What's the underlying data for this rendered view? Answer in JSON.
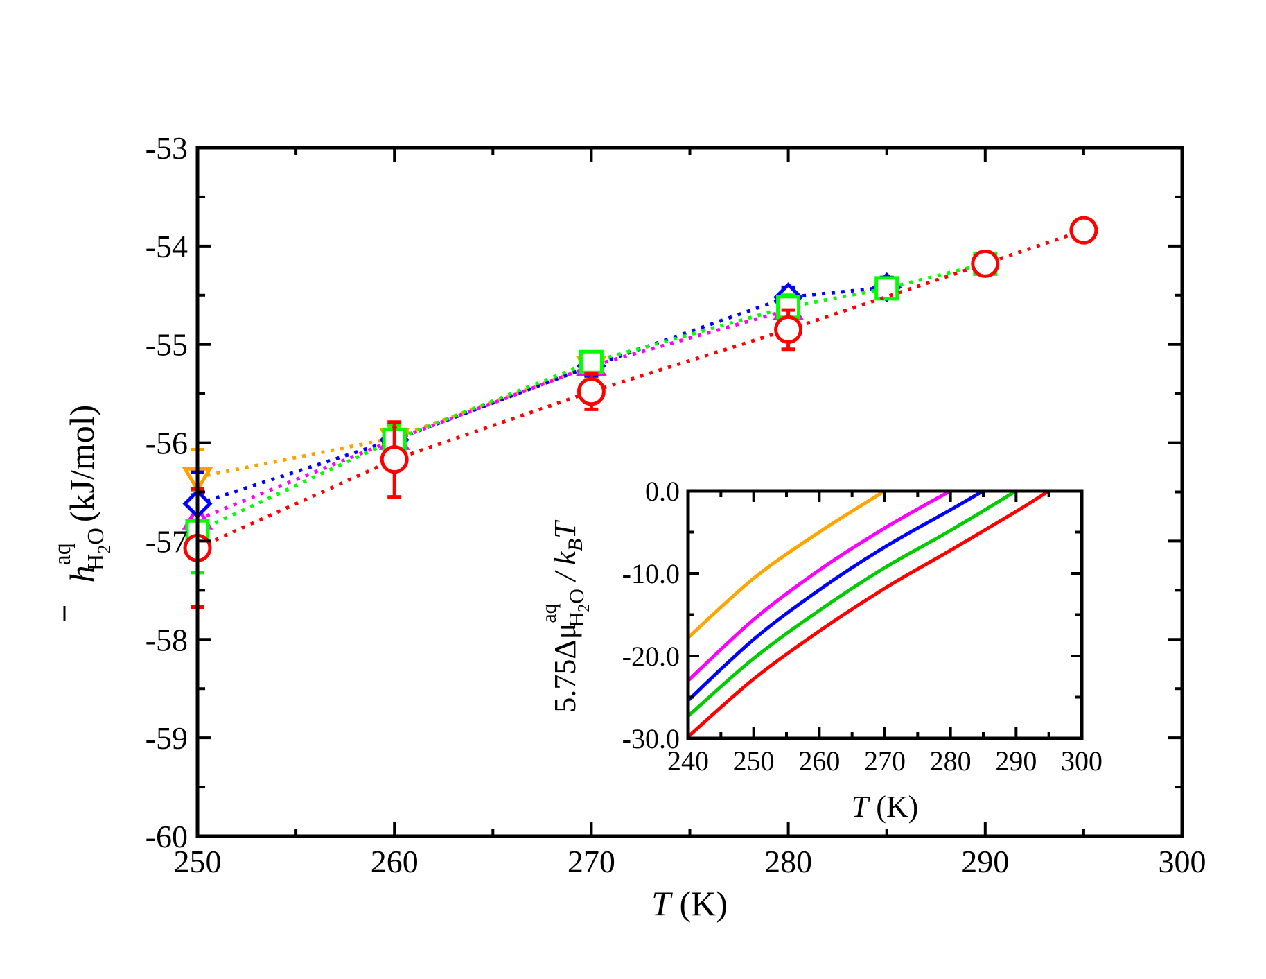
{
  "chart_data": [
    {
      "type": "scatter",
      "xlabel": {
        "italic": "T",
        "rest": " (K)"
      },
      "ylabel": {
        "bar_symbol": "h",
        "superscript": "aq",
        "subscript_H": "H",
        "subscript_2": "2",
        "subscript_O": "O",
        "unit": "(kJ/mol)"
      },
      "xlim": [
        250,
        300
      ],
      "ylim": [
        -60,
        -53
      ],
      "xticks": [
        250,
        260,
        270,
        280,
        290,
        300
      ],
      "yticks": [
        -60,
        -59,
        -58,
        -57,
        -56,
        -55,
        -54,
        -53
      ],
      "x_tick_labels": [
        "250",
        "260",
        "270",
        "280",
        "290",
        "300"
      ],
      "y_tick_labels": [
        "-60",
        "-59",
        "-58",
        "-57",
        "-56",
        "-55",
        "-54",
        "-53"
      ],
      "grid": false,
      "line_style": "dotted",
      "series": [
        {
          "color": "#ff9f00",
          "marker": "triangle-down",
          "x": [
            250,
            260,
            270
          ],
          "y": [
            -56.35,
            -55.95,
            -55.22
          ],
          "err": [
            0.28,
            0.12,
            0.12
          ]
        },
        {
          "color": "#ff00ff",
          "marker": "triangle-up",
          "x": [
            250,
            260,
            270,
            280
          ],
          "y": [
            -56.78,
            -55.97,
            -55.22,
            -54.65
          ],
          "err": [
            0.25,
            0.1,
            0.1,
            0.1
          ]
        },
        {
          "color": "#0000ff",
          "marker": "diamond",
          "x": [
            250,
            260,
            270,
            280,
            285
          ],
          "y": [
            -56.62,
            -55.97,
            -55.22,
            -54.52,
            -54.42
          ],
          "err": [
            0.32,
            0.1,
            0.1,
            0.1,
            0.1
          ]
        },
        {
          "color": "#00ff00",
          "marker": "square",
          "x": [
            250,
            260,
            270,
            280,
            285,
            290
          ],
          "y": [
            -56.9,
            -55.97,
            -55.18,
            -54.62,
            -54.43,
            -54.18
          ],
          "err": [
            0.42,
            0.15,
            0.1,
            0.12,
            0.08,
            0.06
          ]
        },
        {
          "color": "#ff0000",
          "marker": "circle",
          "x": [
            250,
            260,
            270,
            280,
            290,
            295
          ],
          "y": [
            -57.07,
            -56.17,
            -55.48,
            -54.85,
            -54.18,
            -53.84
          ],
          "err": [
            0.6,
            0.38,
            0.18,
            0.2,
            0.08,
            0.05
          ]
        }
      ]
    },
    {
      "type": "line",
      "inset": true,
      "xlabel": {
        "italic": "T",
        "rest": " (K)"
      },
      "ylabel": {
        "prefix": "5.75Δμ",
        "superscript": "aq",
        "subscript_H": "H",
        "subscript_2": "2",
        "subscript_O": "O",
        "slash": " / k",
        "k_subscript": "B",
        "T": "T"
      },
      "xlim": [
        240,
        300
      ],
      "ylim": [
        -30,
        0
      ],
      "xticks": [
        240,
        250,
        260,
        270,
        280,
        290,
        300
      ],
      "yticks": [
        -30,
        -20,
        -10,
        0
      ],
      "x_tick_labels": [
        "240",
        "250",
        "260",
        "270",
        "280",
        "290",
        "300"
      ],
      "y_tick_labels": [
        "-30.0",
        "-20.0",
        "-10.0",
        "0.0"
      ],
      "grid": false,
      "series": [
        {
          "color": "#ffa500",
          "x": [
            240,
            250,
            260,
            270
          ],
          "y": [
            -17.8,
            -10.6,
            -5.0,
            0.0
          ]
        },
        {
          "color": "#ff00ff",
          "x": [
            240,
            250,
            260,
            270,
            280
          ],
          "y": [
            -23.0,
            -15.6,
            -9.6,
            -4.5,
            0.0
          ]
        },
        {
          "color": "#0000ff",
          "x": [
            240,
            250,
            260,
            270,
            280,
            285
          ],
          "y": [
            -25.4,
            -18.0,
            -12.0,
            -6.8,
            -2.3,
            0.0
          ]
        },
        {
          "color": "#00cc00",
          "x": [
            240,
            250,
            260,
            270,
            280,
            290
          ],
          "y": [
            -27.3,
            -20.3,
            -14.5,
            -9.3,
            -4.8,
            0.0
          ]
        },
        {
          "color": "#ff0000",
          "x": [
            240,
            250,
            260,
            270,
            280,
            290,
            295
          ],
          "y": [
            -29.8,
            -22.8,
            -17.0,
            -11.8,
            -7.2,
            -2.5,
            0.0
          ]
        }
      ]
    }
  ]
}
